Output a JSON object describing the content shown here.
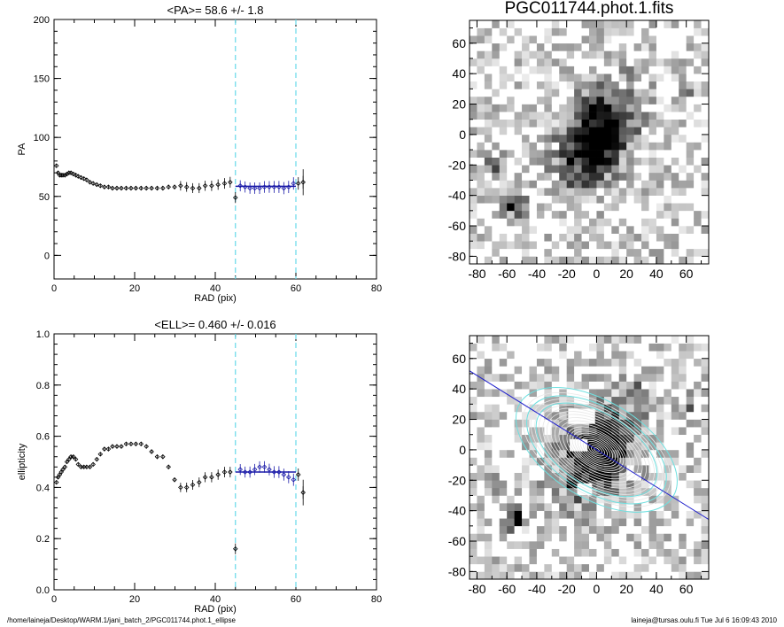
{
  "footer": {
    "path": "/home/laineja/Desktop/WARM.1/jani_batch_2/PGC011744.phot.1_ellipse",
    "user_date": "laineja@tursas.oulu.fi  Tue Jul  6 16:09:43 2010"
  },
  "colors": {
    "points": "#000000",
    "fit": "#1a1aa8",
    "dashed": "#66d9e8",
    "ellipses": "#e8e8e8",
    "ellipses_cyan": "#6ee0e0",
    "line": "#2222cc"
  },
  "chart_data": [
    {
      "type": "scatter",
      "title": "<PA>=  58.6 +/-   1.8",
      "xlabel": "RAD (pix)",
      "ylabel": "PA",
      "xlim": [
        0,
        80
      ],
      "ylim": [
        -20,
        200
      ],
      "xticks": [
        "0",
        "20",
        "40",
        "60",
        "80"
      ],
      "yticks": [
        "0",
        "50",
        "100",
        "150",
        "200"
      ],
      "vlines": [
        45,
        60
      ],
      "mean_line": {
        "x": [
          45,
          60
        ],
        "y": 58.6
      },
      "x": [
        0.6,
        1.0,
        1.4,
        1.8,
        2.2,
        2.7,
        3.2,
        3.7,
        4.2,
        4.8,
        5.4,
        6.0,
        6.7,
        7.4,
        8.1,
        8.9,
        9.7,
        10.6,
        11.5,
        12.5,
        13.5,
        14.5,
        15.6,
        16.7,
        17.9,
        19.1,
        20.3,
        21.6,
        22.9,
        24.2,
        25.6,
        27.0,
        28.4,
        29.9,
        31.4,
        32.9,
        34.4,
        36.0,
        37.5,
        39.1,
        40.7,
        42.3,
        43.7,
        45.0,
        46.2,
        47.4,
        48.6,
        49.8,
        51.0,
        52.2,
        53.4,
        54.6,
        55.8,
        57.0,
        58.2,
        59.4,
        60.6,
        61.8
      ],
      "y": [
        76,
        70,
        68,
        68,
        68,
        68,
        69,
        70,
        70,
        69,
        68,
        67,
        66,
        65,
        64,
        62,
        61,
        60,
        59,
        58,
        58,
        57,
        57,
        57,
        57,
        57,
        57,
        57,
        57,
        57,
        57,
        57,
        58,
        58,
        59,
        58,
        57,
        57,
        59,
        59,
        60,
        61,
        62,
        49,
        59,
        58,
        57,
        57,
        57,
        58,
        58,
        58,
        58,
        57,
        58,
        61,
        61,
        62
      ]
    },
    {
      "type": "scatter",
      "title": "<ELL>= 0.460 +/-  0.016",
      "xlabel": "RAD (pix)",
      "ylabel": "ellipticity",
      "xlim": [
        0,
        80
      ],
      "ylim": [
        0.0,
        1.0
      ],
      "xticks": [
        "0",
        "20",
        "40",
        "60",
        "80"
      ],
      "yticks": [
        "0.0",
        "0.2",
        "0.4",
        "0.6",
        "0.8",
        "1.0"
      ],
      "vlines": [
        45,
        60
      ],
      "mean_line": {
        "x": [
          45,
          60
        ],
        "y": 0.46
      },
      "x": [
        0.6,
        1.0,
        1.4,
        1.8,
        2.2,
        2.7,
        3.2,
        3.7,
        4.2,
        4.8,
        5.4,
        6.0,
        6.7,
        7.4,
        8.1,
        8.9,
        9.7,
        10.6,
        11.5,
        12.5,
        13.5,
        14.5,
        15.6,
        16.7,
        17.9,
        19.1,
        20.3,
        21.6,
        22.9,
        24.2,
        25.6,
        27.0,
        28.4,
        29.9,
        31.4,
        32.9,
        34.4,
        36.0,
        37.5,
        39.1,
        40.7,
        42.3,
        43.7,
        45.0,
        46.2,
        47.4,
        48.6,
        49.8,
        51.0,
        52.2,
        53.4,
        54.6,
        55.8,
        57.0,
        58.2,
        59.4,
        60.6,
        61.8
      ],
      "y": [
        0.42,
        0.44,
        0.45,
        0.46,
        0.47,
        0.48,
        0.5,
        0.51,
        0.52,
        0.52,
        0.51,
        0.49,
        0.48,
        0.48,
        0.48,
        0.48,
        0.49,
        0.51,
        0.53,
        0.55,
        0.55,
        0.56,
        0.56,
        0.56,
        0.57,
        0.57,
        0.57,
        0.57,
        0.56,
        0.54,
        0.52,
        0.52,
        0.48,
        0.43,
        0.4,
        0.4,
        0.41,
        0.42,
        0.44,
        0.44,
        0.45,
        0.46,
        0.46,
        0.16,
        0.47,
        0.46,
        0.46,
        0.47,
        0.48,
        0.48,
        0.47,
        0.46,
        0.46,
        0.45,
        0.44,
        0.43,
        0.45,
        0.38
      ]
    },
    {
      "type": "heatmap",
      "title": "PGC011744.phot.1.fits",
      "xticks": [
        "-80",
        "-60",
        "-40",
        "-20",
        "0",
        "20",
        "40",
        "60"
      ],
      "yticks": [
        "60",
        "40",
        "20",
        "0",
        "-20",
        "-40",
        "-60",
        "-80"
      ],
      "xlim": [
        -85,
        75
      ],
      "ylim": [
        -85,
        75
      ],
      "sources": [
        {
          "x": 0,
          "y": -2,
          "amp": 1.0,
          "sx": 22,
          "sy": 14
        },
        {
          "x": -55,
          "y": -45,
          "amp": 0.75,
          "sx": 5,
          "sy": 5
        },
        {
          "x": -68,
          "y": -20,
          "amp": 0.4,
          "sx": 5,
          "sy": 5
        },
        {
          "x": 62,
          "y": 30,
          "amp": 0.35,
          "sx": 4,
          "sy": 4
        },
        {
          "x": 28,
          "y": 45,
          "amp": 0.3,
          "sx": 4,
          "sy": 4
        }
      ]
    },
    {
      "type": "heatmap",
      "title": "",
      "xticks": [
        "-80",
        "-60",
        "-40",
        "-20",
        "0",
        "20",
        "40",
        "60"
      ],
      "yticks": [
        "60",
        "40",
        "20",
        "0",
        "-20",
        "-40",
        "-60",
        "-80"
      ],
      "xlim": [
        -85,
        75
      ],
      "ylim": [
        -85,
        75
      ],
      "pa_deg": 58.6,
      "ellipticity": 0.46,
      "ellipse_radii": [
        2,
        4,
        6,
        8,
        10,
        12,
        14,
        16,
        18,
        20,
        22,
        25,
        28,
        31,
        34,
        37,
        40,
        43,
        46,
        49,
        52,
        55
      ],
      "cyan_radii": [
        45,
        52,
        60
      ],
      "masks": [
        {
          "x": -10,
          "y": 22,
          "w": 18,
          "h": 10
        },
        {
          "x": -12,
          "y": 3,
          "w": 12,
          "h": 8
        },
        {
          "x": -8,
          "y": -26,
          "w": 10,
          "h": 8
        }
      ]
    }
  ]
}
